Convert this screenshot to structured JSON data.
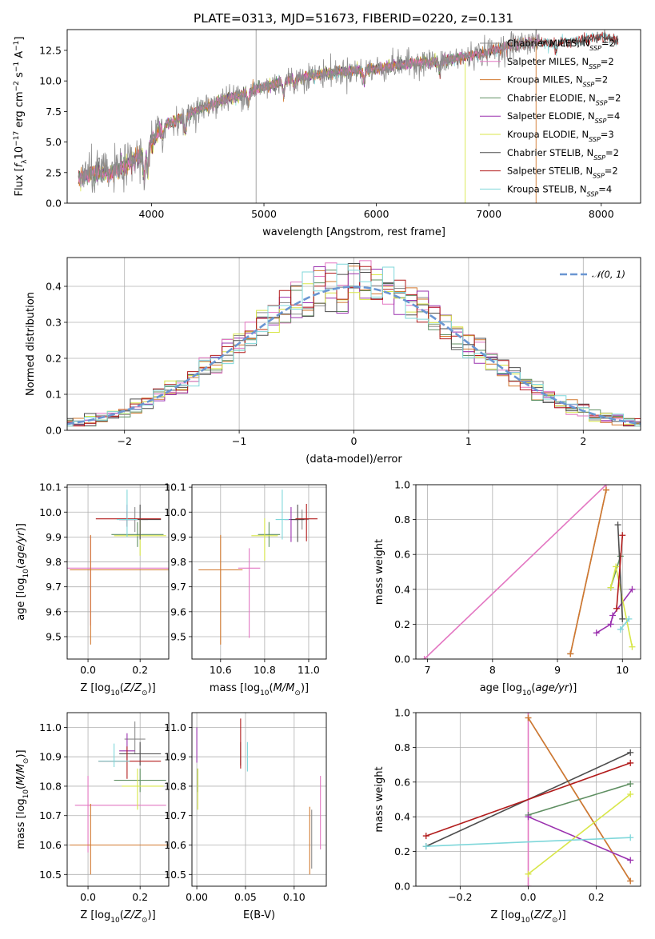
{
  "figure_title": "PLATE=0313, MJD=51673, FIBERID=0220, z=0.131",
  "colors": {
    "Chabrier MILES": "#8c8c8c",
    "Salpeter MILES": "#e377c2",
    "Kroupa MILES": "#d2782e",
    "Chabrier ELODIE": "#5f8f62",
    "Salpeter ELODIE": "#9a30ae",
    "Kroupa ELODIE": "#d8e648",
    "Chabrier STELIB": "#4d4d4d",
    "Salpeter STELIB": "#b21c1c",
    "Kroupa STELIB": "#7fd7da",
    "gauss": "#6a96d2"
  },
  "chart_data": [
    {
      "id": "spectrum",
      "type": "line",
      "title": "PLATE=0313, MJD=51673, FIBERID=0220, z=0.131",
      "xlabel": "wavelength [Angstrom, rest frame]",
      "ylabel_parts": [
        "Flux [",
        "f",
        "λ",
        "10",
        "−17",
        " erg cm",
        "−2",
        " s",
        "−1",
        " A",
        "−1",
        "]"
      ],
      "xlim": [
        3250,
        8350
      ],
      "ylim": [
        0,
        14.2
      ],
      "xticks": [
        4000,
        5000,
        6000,
        7000,
        8000
      ],
      "yticks": [
        0.0,
        2.5,
        5.0,
        7.5,
        10.0,
        12.5
      ],
      "legend_loc": "upper-right",
      "continuum": {
        "x": [
          3350,
          3500,
          3650,
          3800,
          3950,
          4100,
          4250,
          4400,
          4600,
          4800,
          5000,
          5200,
          5400,
          5600,
          5800,
          6000,
          6200,
          6400,
          6600,
          6800,
          7000,
          7200,
          7400,
          7600,
          7800,
          8000,
          8150
        ],
        "y": [
          2.1,
          2.5,
          2.5,
          3.2,
          4.2,
          6.3,
          6.9,
          7.6,
          8.3,
          8.9,
          9.5,
          10.1,
          10.4,
          10.7,
          10.8,
          11.0,
          11.3,
          11.5,
          11.6,
          12.0,
          12.4,
          12.9,
          13.2,
          13.1,
          13.3,
          13.6,
          13.3
        ]
      },
      "series": [
        {
          "name": "Chabrier MILES",
          "nssp": "2",
          "xmax": 7450
        },
        {
          "name": "Salpeter MILES",
          "nssp": "2",
          "xmax": 7450
        },
        {
          "name": "Kroupa MILES",
          "nssp": "2",
          "xmax": 7450
        },
        {
          "name": "Chabrier ELODIE",
          "nssp": "2",
          "xmax": 6800
        },
        {
          "name": "Salpeter ELODIE",
          "nssp": "4",
          "xmax": 6800
        },
        {
          "name": "Kroupa ELODIE",
          "nssp": "3",
          "xmax": 6800
        },
        {
          "name": "Chabrier STELIB",
          "nssp": "2",
          "xmax": 8150
        },
        {
          "name": "Salpeter STELIB",
          "nssp": "2",
          "xmax": 8150
        },
        {
          "name": "Kroupa STELIB",
          "nssp": "4",
          "xmax": 8150
        }
      ]
    },
    {
      "id": "residuals",
      "type": "histogram",
      "xlabel": "(data-model)/error",
      "ylabel": "Normed distribution",
      "xlim": [
        -2.5,
        2.5
      ],
      "ylim": [
        0,
        0.48
      ],
      "xticks": [
        -2,
        -1,
        0,
        1,
        2
      ],
      "yticks": [
        0.0,
        0.1,
        0.2,
        0.3,
        0.4
      ],
      "legend": "𝒩(0, 1)",
      "legend_loc": "upper-right",
      "bin_width": 0.1,
      "series_names": [
        "Chabrier MILES",
        "Salpeter MILES",
        "Kroupa MILES",
        "Chabrier ELODIE",
        "Salpeter ELODIE",
        "Kroupa ELODIE",
        "Chabrier STELIB",
        "Salpeter STELIB",
        "Kroupa STELIB"
      ]
    },
    {
      "id": "z-age",
      "type": "errorbar",
      "xlabel": "Z [log10(Z/Z⊙)]",
      "ylabel": "age  [log10(age/yr)]",
      "xlim": [
        -0.08,
        0.31
      ],
      "ylim": [
        9.41,
        10.11
      ],
      "xticks": [
        0.0,
        0.2
      ],
      "yticks": [
        9.5,
        9.6,
        9.7,
        9.8,
        9.9,
        10.0,
        10.1
      ],
      "points": [
        {
          "s": "Chabrier MILES",
          "x": 0.18,
          "y": 9.97,
          "xe": [
            -0.05,
            0.05
          ],
          "ye": [
            -0.05,
            0.05
          ]
        },
        {
          "s": "Salpeter MILES",
          "x": 0.01,
          "y": 9.775,
          "xe": [
            -0.1,
            0.3
          ],
          "ye": [
            -0.23,
            0.13
          ]
        },
        {
          "s": "Kroupa MILES",
          "x": 0.01,
          "y": 9.768,
          "xe": [
            -0.08,
            0.3
          ],
          "ye": [
            -0.3,
            0.14
          ]
        },
        {
          "s": "Chabrier ELODIE",
          "x": 0.19,
          "y": 9.91,
          "xe": [
            -0.1,
            0.1
          ],
          "ye": [
            -0.05,
            0.05
          ]
        },
        {
          "s": "Salpeter ELODIE",
          "x": 0.15,
          "y": 9.97,
          "xe": [
            -0.03,
            0.03
          ],
          "ye": [
            -0.03,
            0.06
          ]
        },
        {
          "s": "Kroupa ELODIE",
          "x": 0.2,
          "y": 9.905,
          "xe": [
            -0.1,
            0.1
          ],
          "ye": [
            -0.08,
            0.07
          ]
        },
        {
          "s": "Chabrier STELIB",
          "x": 0.2,
          "y": 9.97,
          "xe": [
            -0.08,
            0.08
          ],
          "ye": [
            -0.08,
            0.06
          ]
        },
        {
          "s": "Salpeter STELIB",
          "x": 0.15,
          "y": 9.973,
          "xe": [
            -0.12,
            0.13
          ],
          "ye": [
            -0.03,
            0.03
          ]
        },
        {
          "s": "Kroupa STELIB",
          "x": 0.15,
          "y": 9.97,
          "xe": [
            -0.04,
            0.04
          ],
          "ye": [
            -0.07,
            0.12
          ]
        }
      ]
    },
    {
      "id": "mass-age",
      "type": "errorbar",
      "xlabel": "mass [log10(M/M⊙)]",
      "ylabel": "",
      "xlim": [
        10.47,
        11.08
      ],
      "ylim": [
        9.41,
        10.11
      ],
      "xticks": [
        10.6,
        10.8,
        11.0
      ],
      "yticks": [
        9.5,
        9.6,
        9.7,
        9.8,
        9.9,
        10.0,
        10.1
      ],
      "points": [
        {
          "s": "Chabrier MILES",
          "x": 10.97,
          "y": 9.97,
          "xe": [
            -0.03,
            0.03
          ],
          "ye": [
            -0.04,
            0.04
          ]
        },
        {
          "s": "Salpeter MILES",
          "x": 10.73,
          "y": 9.775,
          "xe": [
            -0.05,
            0.05
          ],
          "ye": [
            -0.28,
            0.08
          ]
        },
        {
          "s": "Kroupa MILES",
          "x": 10.6,
          "y": 9.768,
          "xe": [
            -0.1,
            0.1
          ],
          "ye": [
            -0.3,
            0.14
          ]
        },
        {
          "s": "Chabrier ELODIE",
          "x": 10.82,
          "y": 9.91,
          "xe": [
            -0.05,
            0.05
          ],
          "ye": [
            -0.05,
            0.05
          ]
        },
        {
          "s": "Salpeter ELODIE",
          "x": 10.92,
          "y": 9.97,
          "xe": [
            -0.03,
            0.03
          ],
          "ye": [
            -0.09,
            0.05
          ]
        },
        {
          "s": "Kroupa ELODIE",
          "x": 10.8,
          "y": 9.905,
          "xe": [
            -0.06,
            0.06
          ],
          "ye": [
            -0.1,
            0.07
          ]
        },
        {
          "s": "Chabrier STELIB",
          "x": 10.95,
          "y": 9.97,
          "xe": [
            -0.03,
            0.03
          ],
          "ye": [
            -0.09,
            0.06
          ]
        },
        {
          "s": "Salpeter STELIB",
          "x": 10.99,
          "y": 9.973,
          "xe": [
            -0.05,
            0.05
          ],
          "ye": [
            -0.09,
            0.06
          ]
        },
        {
          "s": "Kroupa STELIB",
          "x": 10.88,
          "y": 9.97,
          "xe": [
            -0.03,
            0.03
          ],
          "ye": [
            -0.08,
            0.12
          ]
        }
      ]
    },
    {
      "id": "age-weight",
      "type": "line",
      "xlabel": "age  [log10(age/yr)]",
      "ylabel": "mass weight",
      "xlim": [
        6.82,
        10.28
      ],
      "ylim": [
        0,
        1
      ],
      "xticks": [
        7,
        8,
        9,
        10
      ],
      "yticks": [
        0.0,
        0.2,
        0.4,
        0.6,
        0.8,
        1.0
      ],
      "series": [
        {
          "s": "Salpeter MILES",
          "x": [
            6.95,
            9.75
          ],
          "y": [
            0.0,
            1.0
          ]
        },
        {
          "s": "Chabrier MILES",
          "x": [
            9.2,
            9.75
          ],
          "y": [
            0.03,
            0.97
          ]
        },
        {
          "s": "Kroupa MILES",
          "x": [
            9.2,
            9.75
          ],
          "y": [
            0.03,
            0.97
          ]
        },
        {
          "s": "Chabrier ELODIE",
          "x": [
            9.82,
            9.97
          ],
          "y": [
            0.41,
            0.59
          ]
        },
        {
          "s": "Salpeter ELODIE",
          "x": [
            9.6,
            9.82,
            9.85,
            10.15
          ],
          "y": [
            0.15,
            0.2,
            0.25,
            0.4
          ]
        },
        {
          "s": "Kroupa ELODIE",
          "x": [
            9.82,
            9.9,
            10.15
          ],
          "y": [
            0.41,
            0.53,
            0.07
          ]
        },
        {
          "s": "Chabrier STELIB",
          "x": [
            9.93,
            10.0
          ],
          "y": [
            0.77,
            0.23
          ]
        },
        {
          "s": "Salpeter STELIB",
          "x": [
            9.91,
            10.0
          ],
          "y": [
            0.29,
            0.71
          ]
        },
        {
          "s": "Kroupa STELIB",
          "x": [
            9.97,
            10.1
          ],
          "y": [
            0.17,
            0.23
          ]
        }
      ]
    },
    {
      "id": "z-mass",
      "type": "errorbar",
      "xlabel": "Z [log10(Z/Z⊙)]",
      "ylabel": "mass [log10(M/M⊙)]",
      "xlim": [
        -0.08,
        0.31
      ],
      "ylim": [
        10.46,
        11.05
      ],
      "xticks": [
        0.0,
        0.2
      ],
      "yticks": [
        10.5,
        10.6,
        10.7,
        10.8,
        10.9,
        11.0
      ],
      "points": [
        {
          "s": "Chabrier MILES",
          "x": 0.18,
          "y": 10.96,
          "xe": [
            -0.04,
            0.04
          ],
          "ye": [
            -0.05,
            0.06
          ]
        },
        {
          "s": "Salpeter MILES",
          "x": 0.0,
          "y": 10.735,
          "xe": [
            -0.05,
            0.3
          ],
          "ye": [
            -0.16,
            0.1
          ]
        },
        {
          "s": "Kroupa MILES",
          "x": 0.01,
          "y": 10.6,
          "xe": [
            -0.08,
            0.3
          ],
          "ye": [
            -0.1,
            0.14
          ]
        },
        {
          "s": "Chabrier ELODIE",
          "x": 0.2,
          "y": 10.82,
          "xe": [
            -0.1,
            0.1
          ],
          "ye": [
            -0.04,
            0.04
          ]
        },
        {
          "s": "Salpeter ELODIE",
          "x": 0.15,
          "y": 10.92,
          "xe": [
            -0.03,
            0.03
          ],
          "ye": [
            -0.03,
            0.06
          ]
        },
        {
          "s": "Kroupa ELODIE",
          "x": 0.19,
          "y": 10.8,
          "xe": [
            -0.06,
            0.1
          ],
          "ye": [
            -0.08,
            0.06
          ]
        },
        {
          "s": "Chabrier STELIB",
          "x": 0.2,
          "y": 10.91,
          "xe": [
            -0.08,
            0.08
          ],
          "ye": [
            -0.04,
            0.04
          ]
        },
        {
          "s": "Salpeter STELIB",
          "x": 0.15,
          "y": 10.885,
          "xe": [
            -0.11,
            0.13
          ],
          "ye": [
            -0.06,
            0.05
          ]
        },
        {
          "s": "Kroupa STELIB",
          "x": 0.1,
          "y": 10.885,
          "xe": [
            -0.06,
            0.06
          ],
          "ye": [
            -0.02,
            0.06
          ]
        }
      ]
    },
    {
      "id": "ebv-mass",
      "type": "errorbar",
      "xlabel": "E(B-V)",
      "ylabel": "",
      "xlim": [
        -0.005,
        0.133
      ],
      "ylim": [
        10.46,
        11.05
      ],
      "xticks": [
        0.0,
        0.05,
        0.1
      ],
      "yticks": [
        10.5,
        10.6,
        10.7,
        10.8,
        10.9,
        11.0
      ],
      "points": [
        {
          "s": "Chabrier MILES",
          "x": 0.118,
          "y": 10.6,
          "xe": [
            0,
            0
          ],
          "ye": [
            -0.08,
            0.12
          ]
        },
        {
          "s": "Salpeter MILES",
          "x": 0.127,
          "y": 10.715,
          "xe": [
            0,
            0
          ],
          "ye": [
            -0.13,
            0.12
          ]
        },
        {
          "s": "Kroupa MILES",
          "x": 0.116,
          "y": 10.6,
          "xe": [
            0,
            0
          ],
          "ye": [
            -0.1,
            0.13
          ]
        },
        {
          "s": "Chabrier ELODIE",
          "x": 0.001,
          "y": 10.82,
          "xe": [
            0,
            0
          ],
          "ye": [
            -0.04,
            0.04
          ]
        },
        {
          "s": "Salpeter ELODIE",
          "x": 0.0,
          "y": 10.92,
          "xe": [
            0,
            0
          ],
          "ye": [
            -0.04,
            0.08
          ]
        },
        {
          "s": "Kroupa ELODIE",
          "x": 0.001,
          "y": 10.8,
          "xe": [
            0,
            0
          ],
          "ye": [
            -0.08,
            0.06
          ]
        },
        {
          "s": "Chabrier STELIB",
          "x": 0.045,
          "y": 10.91,
          "xe": [
            0,
            0
          ],
          "ye": [
            -0.04,
            0.04
          ]
        },
        {
          "s": "Salpeter STELIB",
          "x": 0.045,
          "y": 10.96,
          "xe": [
            0,
            0
          ],
          "ye": [
            -0.1,
            0.07
          ]
        },
        {
          "s": "Kroupa STELIB",
          "x": 0.052,
          "y": 10.89,
          "xe": [
            0,
            0
          ],
          "ye": [
            -0.04,
            0.06
          ]
        }
      ]
    },
    {
      "id": "z-weight",
      "type": "line",
      "xlabel": "Z [log10(Z/Z⊙)]",
      "ylabel": "mass weight",
      "xlim": [
        -0.33,
        0.33
      ],
      "ylim": [
        0,
        1
      ],
      "xticks": [
        -0.2,
        0.0,
        0.2
      ],
      "yticks": [
        0.0,
        0.2,
        0.4,
        0.6,
        0.8,
        1.0
      ],
      "series": [
        {
          "s": "Salpeter MILES",
          "x": [
            0.0,
            0.0
          ],
          "y": [
            0.0,
            1.0
          ]
        },
        {
          "s": "Chabrier MILES",
          "x": [
            0.0,
            0.3
          ],
          "y": [
            0.97,
            0.03
          ]
        },
        {
          "s": "Kroupa MILES",
          "x": [
            0.0,
            0.3
          ],
          "y": [
            0.97,
            0.03
          ]
        },
        {
          "s": "Chabrier ELODIE",
          "x": [
            0.0,
            0.3
          ],
          "y": [
            0.41,
            0.59
          ]
        },
        {
          "s": "Salpeter ELODIE",
          "x": [
            0.0,
            0.3
          ],
          "y": [
            0.4,
            0.15
          ]
        },
        {
          "s": "Kroupa ELODIE",
          "x": [
            0.0,
            0.3
          ],
          "y": [
            0.07,
            0.53
          ]
        },
        {
          "s": "Chabrier STELIB",
          "x": [
            -0.3,
            0.3
          ],
          "y": [
            0.23,
            0.77
          ]
        },
        {
          "s": "Salpeter STELIB",
          "x": [
            -0.3,
            0.3
          ],
          "y": [
            0.29,
            0.71
          ]
        },
        {
          "s": "Kroupa STELIB",
          "x": [
            -0.3,
            0.3
          ],
          "y": [
            0.23,
            0.28
          ]
        }
      ]
    }
  ]
}
